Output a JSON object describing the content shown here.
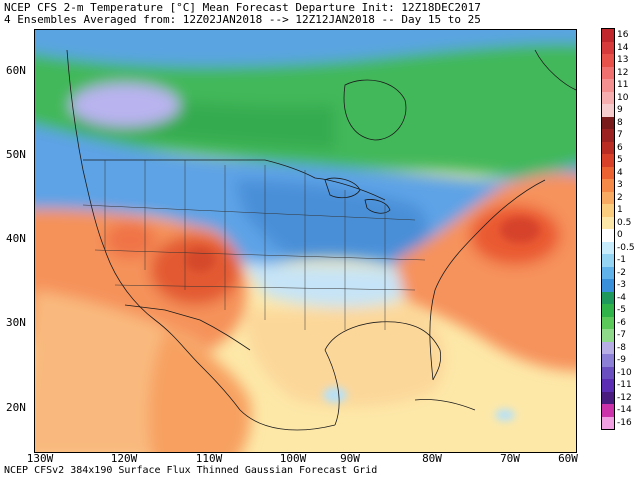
{
  "header": {
    "line1": "NCEP CFS 2-m Temperature [°C] Mean Forecast Departure Init: 12Z18DEC2017",
    "line2": "4 Ensembles Averaged from: 12Z02JAN2018 --> 12Z12JAN2018 -- Day 15 to 25"
  },
  "footer": "NCEP CFSv2 384x190 Surface Flux Thinned Gaussian Forecast Grid",
  "map": {
    "lat_labels": [
      "60N",
      "50N",
      "40N",
      "30N",
      "20N"
    ],
    "lon_labels": [
      "130W",
      "120W",
      "110W",
      "100W",
      "90W",
      "80W",
      "70W",
      "60W"
    ],
    "extent": {
      "lon": [
        -130,
        -55
      ],
      "lat": [
        15,
        66
      ]
    }
  },
  "colorbar": {
    "labels": [
      "16",
      "14",
      "13",
      "12",
      "11",
      "10",
      "9",
      "8",
      "7",
      "6",
      "5",
      "4",
      "3",
      "2",
      "1",
      "0.5",
      "0",
      "-0.5",
      "-1",
      "-2",
      "-3",
      "-4",
      "-5",
      "-6",
      "-7",
      "-8",
      "-9",
      "-10",
      "-11",
      "-12",
      "-14",
      "-16"
    ],
    "colors": [
      "#c0272d",
      "#d63a3a",
      "#e8504a",
      "#f07070",
      "#f49090",
      "#f7aeae",
      "#f6cccc",
      "#7a1b1b",
      "#9c2222",
      "#b82c24",
      "#d8402a",
      "#ec6230",
      "#f58a48",
      "#f8aa62",
      "#fbcd7e",
      "#fde7a8",
      "#ffffff",
      "#c8ecfb",
      "#96d4f4",
      "#5fb3ea",
      "#3a8fdb",
      "#1f9a5c",
      "#30b44a",
      "#5bc85a",
      "#8fd98a",
      "#b8aee6",
      "#8b7fd6",
      "#6a4fc0",
      "#5a2db2",
      "#4a1c80",
      "#cc33aa",
      "#f0a0e0"
    ]
  },
  "colors": {
    "warm_anomaly": "#f06b3a",
    "cold_anomaly": "#4d98dc",
    "green_anomaly": "#3fba58",
    "lavender_anomaly": "#b8b2ee"
  }
}
